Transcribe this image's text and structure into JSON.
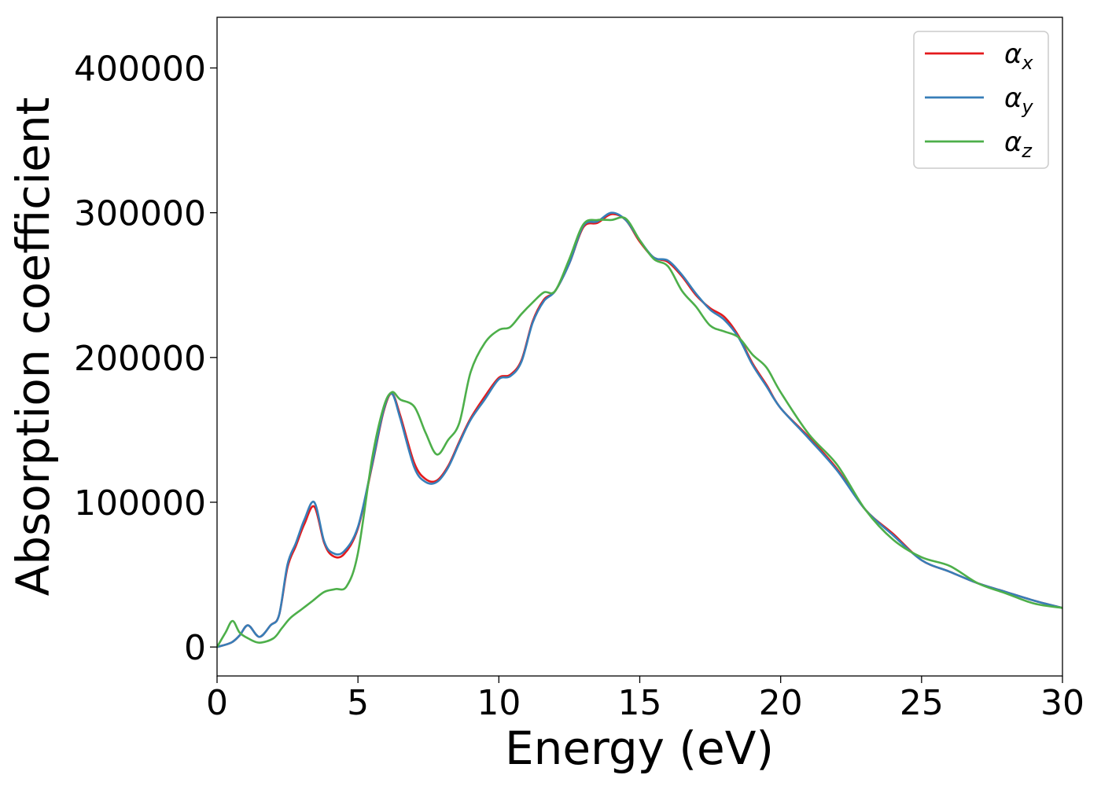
{
  "chart_data": {
    "type": "line",
    "title": "",
    "xlabel": "Energy (eV)",
    "ylabel": "Absorption coefficient",
    "xlim": [
      0,
      30
    ],
    "ylim": [
      -20000,
      435000
    ],
    "xticks": [
      0,
      5,
      10,
      15,
      20,
      25,
      30
    ],
    "yticks": [
      0,
      100000,
      200000,
      300000,
      400000
    ],
    "grid": false,
    "legend_position": "top-right",
    "series": [
      {
        "name": "α",
        "subscript": "x",
        "color": "#e41a1c",
        "x": [
          0,
          0.5,
          0.8,
          1.1,
          1.5,
          1.9,
          2.2,
          2.5,
          2.8,
          3.1,
          3.45,
          3.8,
          4.1,
          4.5,
          5.0,
          5.5,
          5.9,
          6.2,
          6.5,
          7.0,
          7.4,
          7.8,
          8.2,
          8.6,
          9.0,
          9.5,
          10.0,
          10.4,
          10.8,
          11.2,
          11.6,
          12.0,
          12.5,
          13.0,
          13.5,
          14.0,
          14.5,
          15.0,
          15.5,
          16.0,
          16.5,
          17.0,
          17.5,
          18.0,
          18.5,
          19.0,
          19.5,
          20.0,
          21.0,
          22.0,
          23.0,
          24.0,
          25.0,
          26.0,
          27.0,
          28.0,
          29.0,
          30.0
        ],
        "y": [
          0,
          3000,
          8000,
          15000,
          7000,
          15000,
          22000,
          55000,
          70000,
          85000,
          97000,
          72000,
          63000,
          64000,
          82000,
          125000,
          162000,
          175000,
          160000,
          127000,
          116000,
          115000,
          125000,
          142000,
          158000,
          173000,
          186000,
          188000,
          198000,
          225000,
          240000,
          246000,
          265000,
          290000,
          293000,
          299000,
          295000,
          280000,
          269000,
          266000,
          256000,
          243000,
          234000,
          228000,
          215000,
          196000,
          181000,
          165000,
          145000,
          123000,
          95000,
          78000,
          60000,
          52000,
          44000,
          38000,
          32000,
          27000
        ]
      },
      {
        "name": "α",
        "subscript": "y",
        "color": "#377eb8",
        "x": [
          0,
          0.5,
          0.8,
          1.1,
          1.5,
          1.9,
          2.2,
          2.5,
          2.8,
          3.1,
          3.45,
          3.8,
          4.1,
          4.5,
          5.0,
          5.5,
          5.9,
          6.2,
          6.5,
          7.0,
          7.4,
          7.8,
          8.2,
          8.6,
          9.0,
          9.5,
          10.0,
          10.4,
          10.8,
          11.2,
          11.6,
          12.0,
          12.5,
          13.0,
          13.5,
          14.0,
          14.5,
          15.0,
          15.5,
          16.0,
          16.5,
          17.0,
          17.5,
          18.0,
          18.5,
          19.0,
          19.5,
          20.0,
          21.0,
          22.0,
          23.0,
          24.0,
          25.0,
          26.0,
          27.0,
          28.0,
          29.0,
          30.0
        ],
        "y": [
          0,
          3000,
          8000,
          15000,
          7000,
          15000,
          22000,
          57000,
          72000,
          88000,
          100000,
          73000,
          65000,
          66000,
          83000,
          126000,
          163000,
          175000,
          158000,
          124000,
          114000,
          114000,
          124000,
          141000,
          157000,
          171000,
          185000,
          187000,
          197000,
          224000,
          239000,
          246000,
          265000,
          291000,
          294000,
          300000,
          295000,
          281000,
          269000,
          267000,
          257000,
          244000,
          233000,
          226000,
          214000,
          195000,
          180000,
          165000,
          144000,
          122000,
          95000,
          77000,
          60000,
          52000,
          44000,
          38000,
          32000,
          27000
        ]
      },
      {
        "name": "α",
        "subscript": "z",
        "color": "#4daf4a",
        "x": [
          0,
          0.3,
          0.55,
          0.8,
          1.1,
          1.5,
          2.0,
          2.3,
          2.6,
          3.0,
          3.4,
          3.8,
          4.2,
          4.6,
          5.0,
          5.5,
          5.9,
          6.2,
          6.5,
          7.0,
          7.4,
          7.8,
          8.2,
          8.6,
          9.0,
          9.5,
          10.0,
          10.4,
          10.8,
          11.2,
          11.6,
          12.0,
          12.5,
          13.0,
          13.5,
          14.0,
          14.5,
          15.0,
          15.5,
          16.0,
          16.5,
          17.0,
          17.5,
          18.0,
          18.5,
          19.0,
          19.5,
          20.0,
          21.0,
          22.0,
          23.0,
          24.0,
          25.0,
          26.0,
          27.0,
          28.0,
          29.0,
          30.0
        ],
        "y": [
          0,
          10000,
          18000,
          10000,
          6000,
          3000,
          6000,
          13000,
          20000,
          26000,
          32000,
          38000,
          40000,
          42000,
          65000,
          130000,
          165000,
          176000,
          171000,
          166000,
          148000,
          133000,
          143000,
          155000,
          190000,
          210000,
          219000,
          221000,
          230000,
          238000,
          245000,
          246000,
          268000,
          292000,
          295000,
          295000,
          296000,
          281000,
          268000,
          263000,
          246000,
          235000,
          222000,
          218000,
          214000,
          202000,
          193000,
          176000,
          147000,
          126000,
          95000,
          74000,
          62000,
          56000,
          44000,
          37000,
          30000,
          27000
        ]
      }
    ]
  }
}
